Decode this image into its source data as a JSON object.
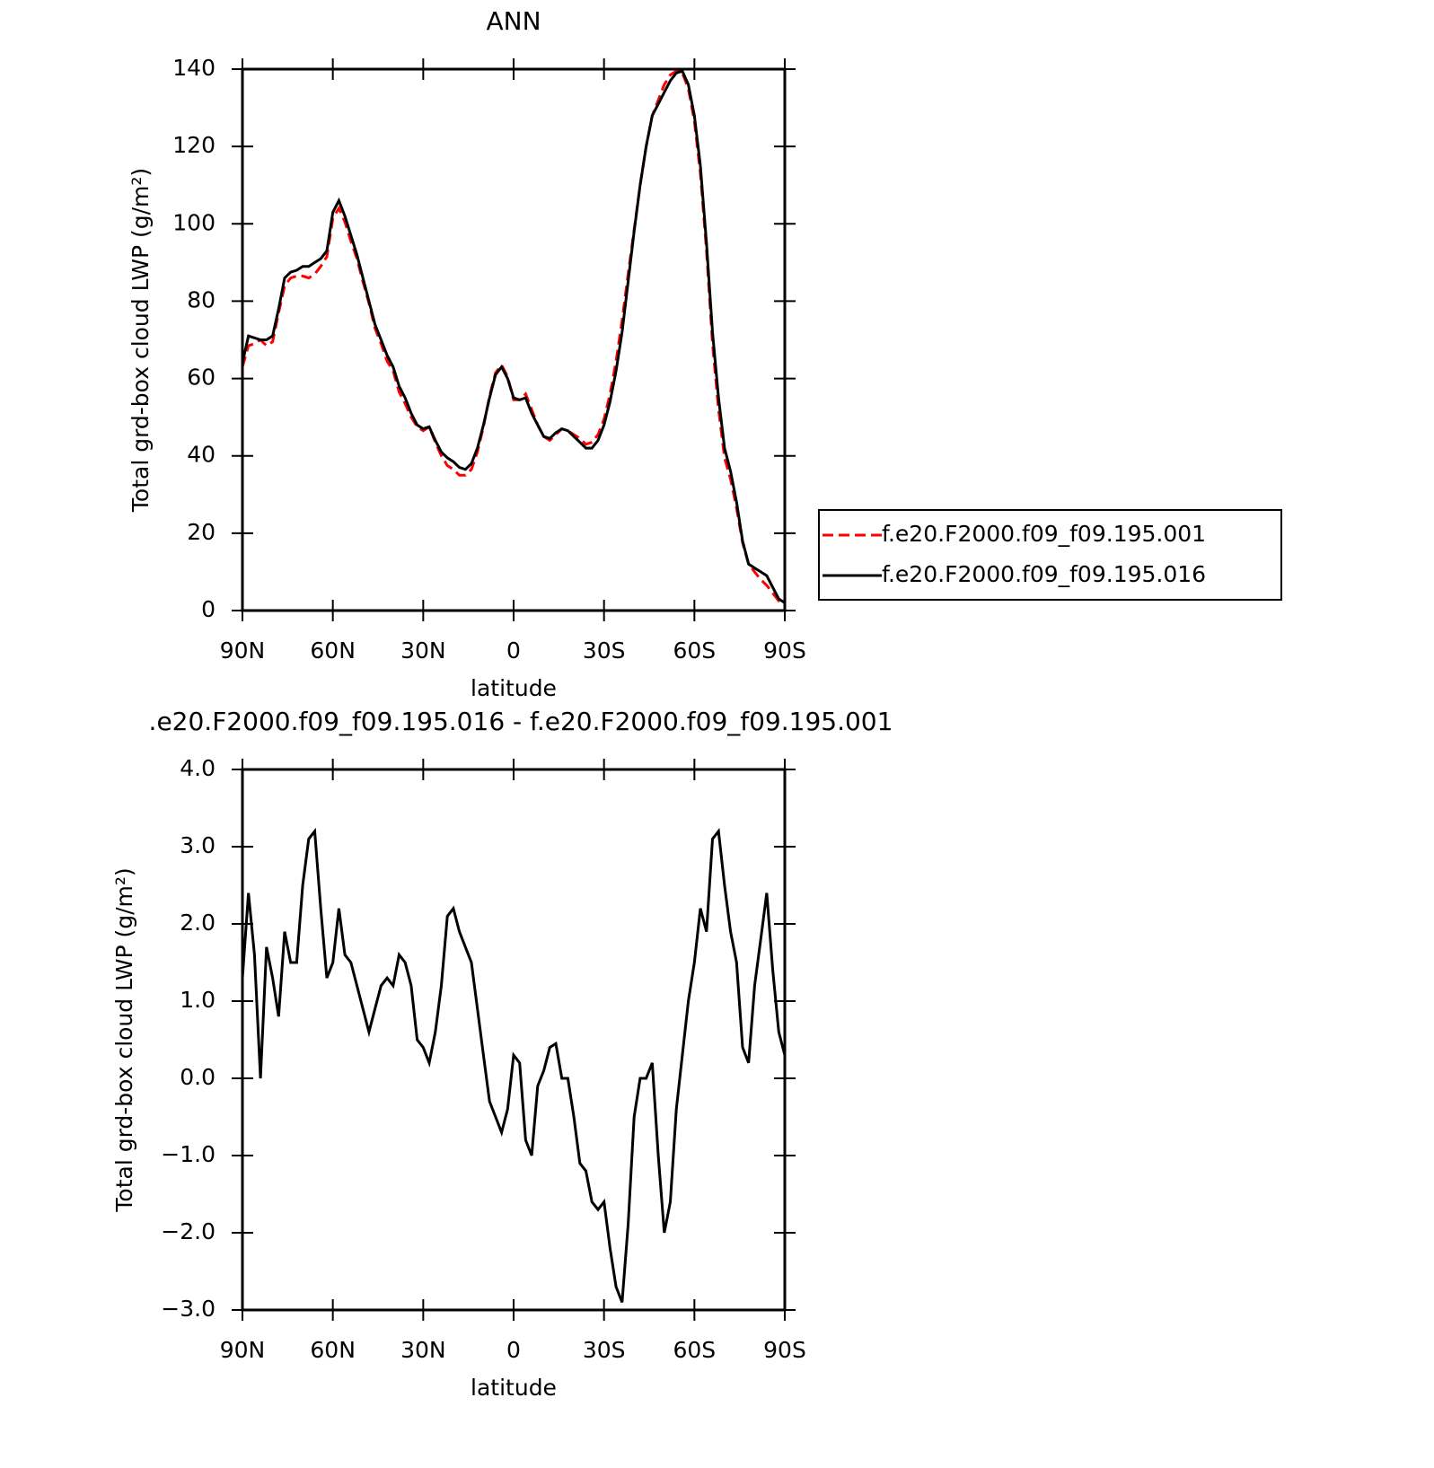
{
  "chart_data": [
    {
      "type": "line",
      "title": "ANN",
      "xlabel": "latitude",
      "ylabel": "Total grd-box cloud LWP (g/m²)",
      "x": [
        90,
        88,
        86,
        84,
        82,
        80,
        78,
        76,
        74,
        72,
        70,
        68,
        66,
        64,
        62,
        60,
        58,
        56,
        54,
        52,
        50,
        48,
        46,
        44,
        42,
        40,
        38,
        36,
        34,
        32,
        30,
        28,
        26,
        24,
        22,
        20,
        18,
        16,
        14,
        12,
        10,
        8,
        6,
        4,
        2,
        0,
        -2,
        -4,
        -6,
        -8,
        -10,
        -12,
        -14,
        -16,
        -18,
        -20,
        -22,
        -24,
        -26,
        -28,
        -30,
        -32,
        -34,
        -36,
        -38,
        -40,
        -42,
        -44,
        -46,
        -48,
        -50,
        -52,
        -54,
        -56,
        -58,
        -60,
        -62,
        -64,
        -66,
        -68,
        -70,
        -72,
        -74,
        -76,
        -78,
        -80,
        -82,
        -84,
        -86,
        -88,
        -90
      ],
      "series": [
        {
          "name": "f.e20.F2000.f09_f09.195.001",
          "color": "#ff0000",
          "line_style": "dashed",
          "values": [
            63,
            68.5,
            69,
            70,
            68.5,
            69.5,
            77,
            84,
            86,
            86.5,
            86.5,
            86,
            87,
            89,
            91.5,
            101.5,
            104,
            100.5,
            95.5,
            91,
            85,
            79.5,
            73,
            69,
            64.5,
            62,
            56.5,
            53.5,
            50,
            47.5,
            46.5,
            47.5,
            43.5,
            40,
            37.5,
            36.5,
            35,
            35,
            36.5,
            41,
            47.5,
            55.5,
            61.5,
            63.5,
            60.5,
            54.5,
            54.5,
            56,
            52,
            48,
            45,
            44,
            45.5,
            47,
            46.5,
            45.5,
            44.5,
            43,
            43.5,
            45.5,
            49.5,
            56,
            64.5,
            75,
            87,
            98.5,
            110,
            120,
            128,
            132,
            136,
            138.5,
            139.5,
            139,
            135,
            126.5,
            113,
            93,
            69,
            52,
            39.5,
            34,
            26.5,
            17.5,
            12,
            10,
            8,
            6.5,
            4.5,
            2.5,
            1.5
          ]
        },
        {
          "name": "f.e20.F2000.f09_f09.195.016",
          "color": "#000000",
          "line_style": "solid",
          "values": [
            64,
            71,
            70.5,
            70,
            70,
            71,
            78,
            86,
            87.5,
            88,
            89,
            89,
            90,
            91,
            93,
            103,
            106,
            102,
            97,
            92,
            86,
            80,
            74,
            70,
            66,
            63,
            58,
            55,
            51,
            48,
            47,
            47.5,
            44,
            41,
            39.5,
            38.5,
            37,
            36.5,
            38,
            42,
            48,
            55,
            61,
            63,
            60,
            55,
            54.5,
            55,
            51,
            48,
            45,
            44.5,
            46,
            47,
            46.5,
            45,
            43.5,
            42,
            42,
            44,
            48,
            54,
            62,
            72,
            85,
            98,
            110,
            120,
            128,
            131,
            134,
            137,
            139,
            139.5,
            136,
            128,
            115,
            95,
            72,
            55,
            42,
            36,
            28,
            18,
            12,
            11,
            10,
            9,
            6,
            3,
            2
          ]
        }
      ],
      "xlim": [
        90,
        -90
      ],
      "ylim": [
        0,
        140
      ],
      "xticks": [
        {
          "value": 90,
          "label": "90N"
        },
        {
          "value": 60,
          "label": "60N"
        },
        {
          "value": 30,
          "label": "30N"
        },
        0,
        {
          "value": -30,
          "label": "30S"
        },
        {
          "value": -60,
          "label": "60S"
        },
        {
          "value": -90,
          "label": "90S"
        }
      ],
      "yticks": [
        0,
        20,
        40,
        60,
        80,
        100,
        120,
        140
      ],
      "legend": "right"
    },
    {
      "type": "line",
      "title": ".e20.F2000.f09_f09.195.016 - f.e20.F2000.f09_f09.195.001",
      "xlabel": "latitude",
      "ylabel": "Total grd-box cloud LWP (g/m²)",
      "x": [
        90,
        88,
        86,
        84,
        82,
        80,
        78,
        76,
        74,
        72,
        70,
        68,
        66,
        64,
        62,
        60,
        58,
        56,
        54,
        52,
        50,
        48,
        46,
        44,
        42,
        40,
        38,
        36,
        34,
        32,
        30,
        28,
        26,
        24,
        22,
        20,
        18,
        16,
        14,
        12,
        10,
        8,
        6,
        4,
        2,
        0,
        -2,
        -4,
        -6,
        -8,
        -10,
        -12,
        -14,
        -16,
        -18,
        -20,
        -22,
        -24,
        -26,
        -28,
        -30,
        -32,
        -34,
        -36,
        -38,
        -40,
        -42,
        -44,
        -46,
        -48,
        -50,
        -52,
        -54,
        -56,
        -58,
        -60,
        -62,
        -64,
        -66,
        -68,
        -70,
        -72,
        -74,
        -76,
        -78,
        -80,
        -82,
        -84,
        -86,
        -88,
        -90
      ],
      "values": [
        1.3,
        2.4,
        1.6,
        0.0,
        1.7,
        1.3,
        0.8,
        1.9,
        1.5,
        1.5,
        2.5,
        3.1,
        3.2,
        2.2,
        1.3,
        1.5,
        2.2,
        1.6,
        1.5,
        1.2,
        0.9,
        0.6,
        0.9,
        1.2,
        1.3,
        1.2,
        1.6,
        1.5,
        1.2,
        0.5,
        0.4,
        0.2,
        0.6,
        1.2,
        2.1,
        2.2,
        1.9,
        1.7,
        1.5,
        0.9,
        0.3,
        -0.3,
        -0.5,
        -0.7,
        -0.4,
        0.3,
        0.2,
        -0.8,
        -1.0,
        -0.1,
        0.1,
        0.4,
        0.45,
        0.0,
        0.0,
        -0.5,
        -1.1,
        -1.2,
        -1.6,
        -1.7,
        -1.6,
        -2.2,
        -2.7,
        -2.9,
        -1.9,
        -0.5,
        0.0,
        0.0,
        0.2,
        -1.0,
        -2.0,
        -1.6,
        -0.4,
        0.3,
        1.0,
        1.5,
        2.2,
        1.9,
        3.1,
        3.2,
        2.5,
        1.9,
        1.5,
        0.4,
        0.2,
        1.2,
        1.8,
        2.4,
        1.4,
        0.6,
        0.3
      ],
      "color": "#000000",
      "xlim": [
        90,
        -90
      ],
      "ylim": [
        -3,
        4
      ],
      "xticks": [
        {
          "value": 90,
          "label": "90N"
        },
        {
          "value": 60,
          "label": "60N"
        },
        {
          "value": 30,
          "label": "30N"
        },
        0,
        {
          "value": -30,
          "label": "30S"
        },
        {
          "value": -60,
          "label": "60S"
        },
        {
          "value": -90,
          "label": "90S"
        }
      ],
      "yticks": [
        {
          "value": -3,
          "label": "−3.0"
        },
        {
          "value": -2,
          "label": "−2.0"
        },
        {
          "value": -1,
          "label": "−1.0"
        },
        {
          "value": 0,
          "label": "0.0"
        },
        {
          "value": 1,
          "label": "1.0"
        },
        {
          "value": 2,
          "label": "2.0"
        },
        {
          "value": 3,
          "label": "3.0"
        },
        {
          "value": 4,
          "label": "4.0"
        }
      ]
    }
  ]
}
